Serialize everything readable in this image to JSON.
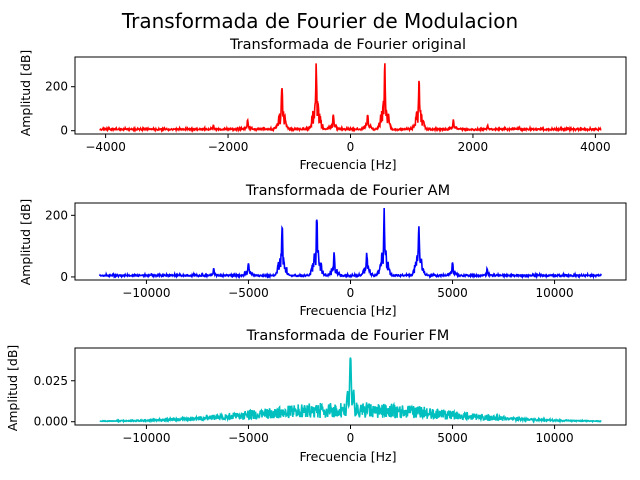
{
  "figure": {
    "title": "Transformada de Fourier de Modulacion"
  },
  "chart_data": [
    {
      "type": "line",
      "title": "Transformada de Fourier original",
      "xlabel": "Frecuencia [Hz]",
      "ylabel": "Amplitud [dB]",
      "color": "#ff0000",
      "xlim": [
        -4500,
        4500
      ],
      "ylim": [
        -15,
        335
      ],
      "xticks": [
        -4000,
        -2000,
        0,
        2000,
        4000
      ],
      "xtick_labels": [
        "−4000",
        "−2000",
        "0",
        "2000",
        "4000"
      ],
      "yticks": [
        0,
        200
      ],
      "ytick_labels": [
        "0",
        "200"
      ],
      "x_range": [
        -4096,
        4096
      ],
      "baseline": 6,
      "noise": 8,
      "peaks": [
        {
          "x": -560,
          "y": 325
        },
        {
          "x": 560,
          "y": 325
        },
        {
          "x": -1120,
          "y": 245
        },
        {
          "x": 1120,
          "y": 245
        },
        {
          "x": -280,
          "y": 85
        },
        {
          "x": 280,
          "y": 85
        },
        {
          "x": -1680,
          "y": 55
        },
        {
          "x": 1680,
          "y": 55
        },
        {
          "x": -2240,
          "y": 28
        },
        {
          "x": 2240,
          "y": 28
        }
      ]
    },
    {
      "type": "line",
      "title": "Transformada de Fourier AM",
      "xlabel": "Frecuencia [Hz]",
      "ylabel": "Amplitud [dB]",
      "color": "#0000ff",
      "xlim": [
        -13500,
        13500
      ],
      "ylim": [
        -10,
        240
      ],
      "xticks": [
        -10000,
        -5000,
        0,
        5000,
        10000
      ],
      "xtick_labels": [
        "−10000",
        "−5000",
        "0",
        "5000",
        "10000"
      ],
      "yticks": [
        0,
        200
      ],
      "ytick_labels": [
        "0",
        "200"
      ],
      "x_range": [
        -12288,
        12288
      ],
      "baseline": 4,
      "noise": 6,
      "peaks": [
        {
          "x": -1650,
          "y": 225
        },
        {
          "x": 1650,
          "y": 225
        },
        {
          "x": -3350,
          "y": 190
        },
        {
          "x": 3350,
          "y": 190
        },
        {
          "x": -800,
          "y": 85
        },
        {
          "x": 800,
          "y": 85
        },
        {
          "x": -5000,
          "y": 55
        },
        {
          "x": 5000,
          "y": 55
        },
        {
          "x": -6700,
          "y": 30
        },
        {
          "x": 6700,
          "y": 30
        }
      ]
    },
    {
      "type": "line",
      "title": "Transformada de Fourier FM",
      "xlabel": "Frecuencia [Hz]",
      "ylabel": "Amplitud [dB]",
      "color": "#00bfbf",
      "xlim": [
        -13500,
        13500
      ],
      "ylim": [
        -0.002,
        0.045
      ],
      "xticks": [
        -10000,
        -5000,
        0,
        5000,
        10000
      ],
      "xtick_labels": [
        "−10000",
        "−5000",
        "0",
        "5000",
        "10000"
      ],
      "yticks": [
        0,
        0.025
      ],
      "ytick_labels": [
        "0.000",
        "0.025"
      ],
      "x_range": [
        -12288,
        12288
      ],
      "envelope_peak": 0.009,
      "envelope_width": 6500,
      "peaks": [
        {
          "x": 0,
          "y": 0.043
        },
        {
          "x": -150,
          "y": 0.02
        },
        {
          "x": 150,
          "y": 0.02
        }
      ]
    }
  ]
}
